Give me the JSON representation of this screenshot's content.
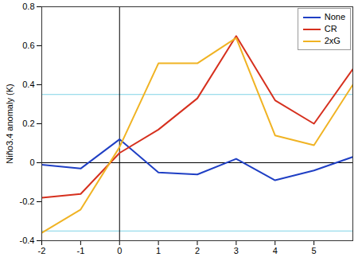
{
  "chart_data": {
    "type": "line",
    "y_label": "Niño3.4 anomaly (K)",
    "x": [
      -2,
      -1,
      0,
      1,
      2,
      3,
      4,
      5,
      6
    ],
    "series": [
      {
        "name": "None",
        "color": "#1f3fc4",
        "values": [
          -0.01,
          -0.03,
          0.12,
          -0.05,
          -0.06,
          0.02,
          -0.09,
          -0.04,
          0.03
        ]
      },
      {
        "name": "CR",
        "color": "#d6301e",
        "values": [
          -0.18,
          -0.16,
          0.05,
          0.17,
          0.33,
          0.65,
          0.32,
          0.2,
          0.48
        ]
      },
      {
        "name": "2xG",
        "color": "#f0b323",
        "values": [
          -0.36,
          -0.24,
          0.08,
          0.51,
          0.51,
          0.64,
          0.14,
          0.09,
          0.4
        ]
      }
    ],
    "xlim": [
      -2,
      6
    ],
    "xticks": [
      -2,
      -1,
      0,
      1,
      2,
      3,
      4,
      5
    ],
    "ylim": [
      -0.4,
      0.8
    ],
    "yticks": [
      -0.4,
      -0.2,
      0,
      0.2,
      0.4,
      0.6,
      0.8
    ],
    "hlines": [
      {
        "y": -0.35,
        "color": "#7fd3e6"
      },
      {
        "y": 0,
        "color": "#000000"
      },
      {
        "y": 0.35,
        "color": "#7fd3e6"
      }
    ],
    "vlines": [
      {
        "x": 0,
        "color": "#000000"
      }
    ],
    "legend": "top-right"
  }
}
